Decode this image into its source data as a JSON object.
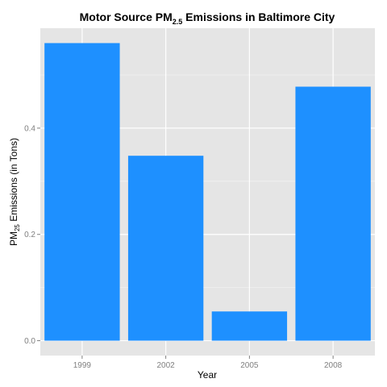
{
  "chart_data": {
    "type": "bar",
    "title": {
      "prefix": "Motor Source PM",
      "subscript": "2.5",
      "suffix": " Emissions in Baltimore City"
    },
    "xlabel": "Year",
    "ylabel": {
      "prefix": "PM",
      "subscript": "25",
      "suffix": " Emissions (in Tons)"
    },
    "categories": [
      "1999",
      "2002",
      "2005",
      "2008"
    ],
    "values": [
      0.56,
      0.348,
      0.055,
      0.478
    ],
    "ylim": [
      -0.028,
      0.588
    ],
    "yticks": [
      0.0,
      0.2,
      0.4
    ],
    "ytick_labels": [
      "0.0",
      "0.2",
      "0.4"
    ],
    "grid": true,
    "colors": {
      "bar": "#1E90FF",
      "panel": "#E5E5E5",
      "grid_major": "#FFFFFF",
      "grid_minor": "#F2F2F2",
      "tick_text": "#7F7F7F"
    }
  }
}
